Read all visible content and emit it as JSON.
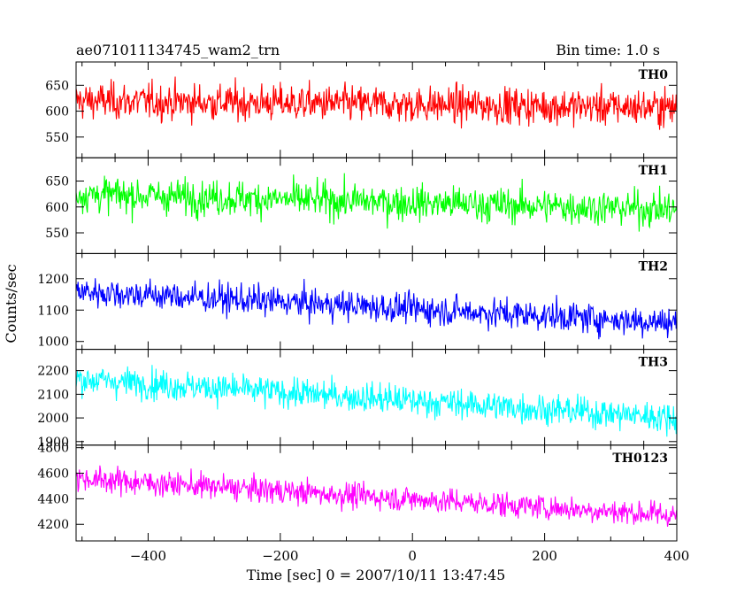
{
  "header": {
    "title": "ae071011134745_wam2_trn",
    "bin_time": "Bin time: 1.0 s"
  },
  "axes": {
    "ylabel": "Counts/sec",
    "xlabel": "Time [sec] 0 = 2007/10/11 13:47:45"
  },
  "chart_data": {
    "type": "line",
    "x_range": [
      -509,
      400
    ],
    "x_ticks": [
      -400,
      -200,
      0,
      200,
      400
    ],
    "bin_seconds": 1.0,
    "panels": [
      {
        "name": "TH0",
        "color": "#ff0000",
        "ylim": [
          510,
          695
        ],
        "y_ticks": [
          550,
          600,
          650
        ],
        "trend": [
          620,
          607
        ],
        "noise": 25,
        "ytick_labels": [
          "550",
          "600",
          "650"
        ]
      },
      {
        "name": "TH1",
        "color": "#00ff00",
        "ylim": [
          510,
          695
        ],
        "y_ticks": [
          550,
          600,
          650
        ],
        "trend": [
          625,
          595
        ],
        "noise": 24,
        "ytick_labels": [
          "550",
          "600",
          "650"
        ]
      },
      {
        "name": "TH2",
        "color": "#0000ff",
        "ylim": [
          975,
          1280
        ],
        "y_ticks": [
          1000,
          1100,
          1200
        ],
        "trend": [
          1160,
          1060
        ],
        "noise": 34,
        "ytick_labels": [
          "1000",
          "1100",
          "1200"
        ]
      },
      {
        "name": "TH3",
        "color": "#00ffff",
        "ylim": [
          1885,
          2290
        ],
        "y_ticks": [
          1900,
          2000,
          2100,
          2200
        ],
        "trend": [
          2165,
          2000
        ],
        "noise": 45,
        "ytick_labels": [
          "1900",
          "2000",
          "2100",
          "2200"
        ]
      },
      {
        "name": "TH0123",
        "color": "#ff00ff",
        "ylim": [
          4070,
          4820
        ],
        "y_ticks": [
          4200,
          4400,
          4600,
          4800
        ],
        "trend": [
          4560,
          4270
        ],
        "noise": 70,
        "ytick_labels": [
          "4200",
          "4400",
          "4600",
          "4800"
        ]
      }
    ],
    "xtick_labels": [
      "−400",
      "−200",
      "0",
      "200",
      "400"
    ]
  }
}
